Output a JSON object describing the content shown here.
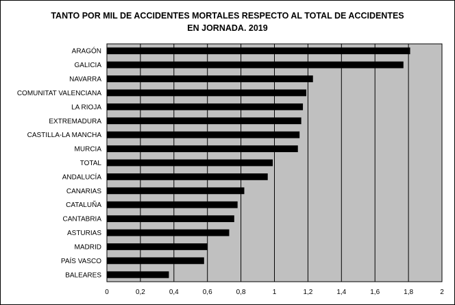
{
  "chart_data": {
    "type": "bar",
    "orientation": "horizontal",
    "title": "TANTO POR MIL DE ACCIDENTES MORTALES RESPECTO AL TOTAL DE ACCIDENTES\nEN JORNADA. 2019",
    "categories": [
      "ARAGÓN",
      "GALICIA",
      "NAVARRA",
      "COMUNITAT VALENCIANA",
      "LA RIOJA",
      "EXTREMADURA",
      "CASTILLA-LA MANCHA",
      "MURCIA",
      "TOTAL",
      "ANDALUCÍA",
      "CANARIAS",
      "CATALUÑA",
      "CANTABRIA",
      "ASTURIAS",
      "MADRID",
      "PAÍS VASCO",
      "BALEARES"
    ],
    "values": [
      1.81,
      1.77,
      1.23,
      1.19,
      1.17,
      1.16,
      1.15,
      1.14,
      0.99,
      0.96,
      0.82,
      0.78,
      0.76,
      0.73,
      0.6,
      0.58,
      0.37
    ],
    "xlim": [
      0,
      2
    ],
    "xticks": [
      "0",
      "0,2",
      "0,4",
      "0,6",
      "0,8",
      "1",
      "1,2",
      "1,4",
      "1,6",
      "1,8",
      "2"
    ],
    "grid": true,
    "colors": {
      "plot_background": "#c0c0c0",
      "bar": "#000000",
      "grid": "#000000"
    }
  }
}
